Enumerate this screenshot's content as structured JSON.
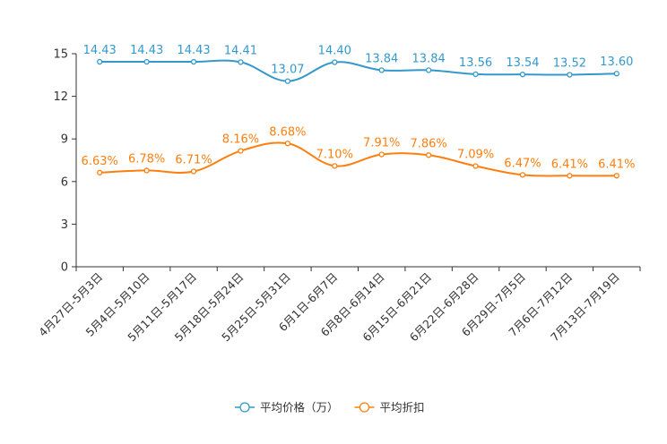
{
  "chart_data": {
    "type": "line",
    "title": "",
    "xlabel": "",
    "ylabel": "",
    "ylim": [
      0,
      15
    ],
    "yticks": [
      0,
      3,
      6,
      9,
      12,
      15
    ],
    "grid": false,
    "legend_position": "bottom-center",
    "categories": [
      "4月27日-5月3日",
      "5月4日-5月10日",
      "5月11日-5月17日",
      "5月18日-5月24日",
      "5月25日-5月31日",
      "6月1日-6月7日",
      "6月8日-6月14日",
      "6月15日-6月21日",
      "6月22日-6月28日",
      "6月29日-7月5日",
      "7月6日-7月12日",
      "7月13日-7月19日"
    ],
    "series": [
      {
        "name": "平均价格（万）",
        "color": "#3399cc",
        "values": [
          14.43,
          14.43,
          14.43,
          14.41,
          13.07,
          14.4,
          13.84,
          13.84,
          13.56,
          13.54,
          13.52,
          13.6
        ],
        "labels": [
          "14.43",
          "14.43",
          "14.43",
          "14.41",
          "13.07",
          "14.40",
          "13.84",
          "13.84",
          "13.56",
          "13.54",
          "13.52",
          "13.60"
        ]
      },
      {
        "name": "平均折扣",
        "color": "#ff7f0e",
        "values": [
          6.63,
          6.78,
          6.71,
          8.16,
          8.68,
          7.1,
          7.91,
          7.86,
          7.09,
          6.47,
          6.41,
          6.41
        ],
        "labels": [
          "6.63%",
          "6.78%",
          "6.71%",
          "8.16%",
          "8.68%",
          "7.10%",
          "7.91%",
          "7.86%",
          "7.09%",
          "6.47%",
          "6.41%",
          "6.41%"
        ]
      }
    ]
  }
}
